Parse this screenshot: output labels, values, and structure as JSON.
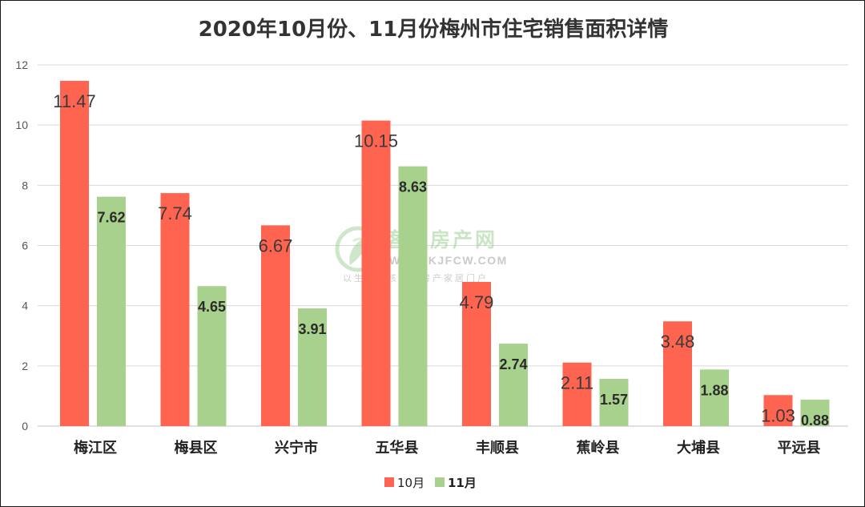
{
  "chart_data": {
    "type": "bar",
    "title": "2020年10月份、11月份梅州市住宅销售面积详情",
    "categories": [
      "梅江区",
      "梅县区",
      "兴宁市",
      "五华县",
      "丰顺县",
      "蕉岭县",
      "大埔县",
      "平远县"
    ],
    "series": [
      {
        "name": "10月",
        "color": "#ff6450",
        "values": [
          11.47,
          7.74,
          6.67,
          10.15,
          4.79,
          2.11,
          3.48,
          1.03
        ]
      },
      {
        "name": "11月",
        "color": "#a9d18e",
        "values": [
          7.62,
          4.65,
          3.91,
          8.63,
          2.74,
          1.57,
          1.88,
          0.88
        ]
      }
    ],
    "ylim": [
      0,
      12
    ],
    "yticks": [
      0,
      2,
      4,
      6,
      8,
      10,
      12
    ],
    "grid": true,
    "legend_position": "bottom-center",
    "data_labels": {
      "10月": [
        "11.47",
        "7.74",
        "6.67",
        "10.15",
        "4.79",
        "2.11",
        "3.48",
        "1.03"
      ],
      "11月": [
        "7.62",
        "4.65",
        "3.91",
        "8.63",
        "2.74",
        "1.57",
        "1.88",
        "0.88"
      ]
    }
  },
  "watermark": {
    "name": "客家房产网",
    "url": "WWW.KJFCW.COM",
    "slogan": "以生活为核心的房产家居门户",
    "logo_icon": "kjfcw-logo-icon"
  }
}
